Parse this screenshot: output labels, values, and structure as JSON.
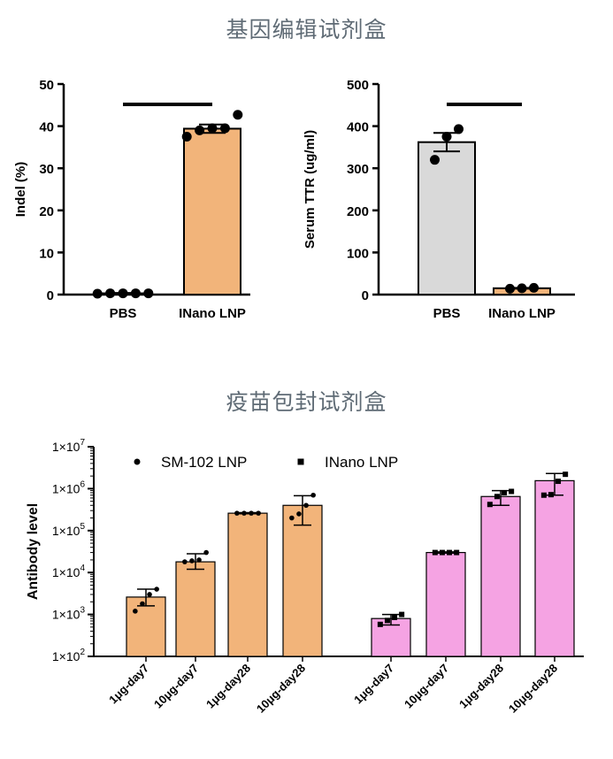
{
  "sections": {
    "gene_editing_title": "基因编辑试剂盒",
    "vaccine_title": "疫苗包封试剂盒"
  },
  "colors": {
    "orange": "#f2b47a",
    "grey": "#d9d9d9",
    "pink": "#f5a3e3",
    "title_text": "#5f6b75"
  },
  "chart_data": [
    {
      "type": "bar",
      "id": "indel",
      "categories": [
        "PBS",
        "INano LNP"
      ],
      "values": [
        0.3,
        39.4
      ],
      "errors": [
        0.1,
        1.0
      ],
      "points": [
        [
          0.2,
          0.3,
          0.3,
          0.3,
          0.3
        ],
        [
          37.5,
          39.0,
          39.5,
          39.5,
          42.7
        ]
      ],
      "bar_colors": [
        "#f2b47a",
        "#f2b47a"
      ],
      "ylabel": "Indel (%)",
      "ylim": [
        0,
        50
      ],
      "yticks": [
        0,
        10,
        20,
        30,
        40,
        50
      ],
      "significance_bar": true,
      "grid": false
    },
    {
      "type": "bar",
      "id": "serum_ttr",
      "categories": [
        "PBS",
        "INano LNP"
      ],
      "values": [
        362,
        15
      ],
      "errors": [
        22,
        1
      ],
      "points": [
        [
          320,
          375,
          393
        ],
        [
          14,
          15,
          16
        ]
      ],
      "bar_colors": [
        "#d9d9d9",
        "#f2b47a"
      ],
      "ylabel": "Serum TTR (ug/ml)",
      "ylim": [
        0,
        500
      ],
      "yticks": [
        0,
        100,
        200,
        300,
        400,
        500
      ],
      "significance_bar": true,
      "grid": false
    },
    {
      "type": "bar",
      "id": "antibody",
      "scale": "log",
      "ylabel": "Antibody level",
      "ylim": [
        100,
        10000000
      ],
      "yticks": [
        {
          "base": "1×10",
          "exp": "2"
        },
        {
          "base": "1×10",
          "exp": "3"
        },
        {
          "base": "1×10",
          "exp": "4"
        },
        {
          "base": "1×10",
          "exp": "5"
        },
        {
          "base": "1×10",
          "exp": "6"
        },
        {
          "base": "1×10",
          "exp": "7"
        }
      ],
      "legend": [
        {
          "name": "SM-102 LNP",
          "marker": "circle"
        },
        {
          "name": "INano LNP",
          "marker": "square"
        }
      ],
      "legend_position": "top",
      "series": [
        {
          "name": "SM-102 LNP",
          "color": "#f2b47a",
          "categories": [
            "1μg-day7",
            "10μg-day7",
            "1μg-day28",
            "10μg-day28"
          ],
          "values": [
            2600,
            18000,
            260000,
            400000
          ],
          "err_low": [
            1600,
            12000,
            252000,
            135000
          ],
          "err_high": [
            4000,
            28000,
            268000,
            680000
          ],
          "points": [
            [
              1200,
              1800,
              3000,
              4000
            ],
            [
              18000,
              19000,
              20000,
              30000
            ],
            [
              260000,
              260000,
              260000,
              260000
            ],
            [
              200000,
              250000,
              400000,
              700000
            ]
          ]
        },
        {
          "name": "INano LNP",
          "color": "#f5a3e3",
          "categories": [
            "1μg-day7",
            "10μg-day7",
            "1μg-day28",
            "10μg-day28"
          ],
          "values": [
            800,
            30000,
            650000,
            1550000
          ],
          "err_low": [
            560,
            29000,
            400000,
            700000
          ],
          "err_high": [
            1000,
            31000,
            900000,
            2300000
          ],
          "points": [
            [
              580,
              720,
              850,
              1000
            ],
            [
              30000,
              30000,
              30000,
              30000
            ],
            [
              420000,
              650000,
              800000,
              860000
            ],
            [
              700000,
              720000,
              1500000,
              2200000
            ]
          ]
        }
      ],
      "grid": false
    }
  ]
}
